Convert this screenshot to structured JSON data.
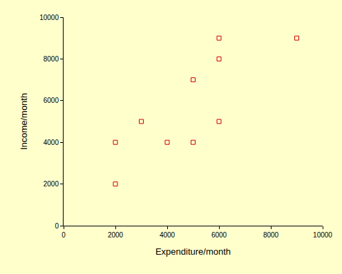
{
  "chart_data": {
    "type": "scatter",
    "x_label": "Expenditure/month",
    "y_label": "Income/month",
    "x": [
      2000,
      2000,
      3000,
      4000,
      5000,
      5000,
      6000,
      6000,
      6000,
      9000
    ],
    "values": [
      4000,
      2000,
      5000,
      4000,
      7000,
      4000,
      9000,
      8000,
      5000,
      9000
    ],
    "color": "#cc0000",
    "marker": "square-open",
    "xlim": [
      0,
      10000
    ],
    "ylim": [
      0,
      10000
    ],
    "xticks": [
      0,
      2000,
      4000,
      6000,
      8000,
      10000
    ],
    "yticks": [
      0,
      2000,
      4000,
      6000,
      8000,
      10000
    ],
    "grid": false
  }
}
